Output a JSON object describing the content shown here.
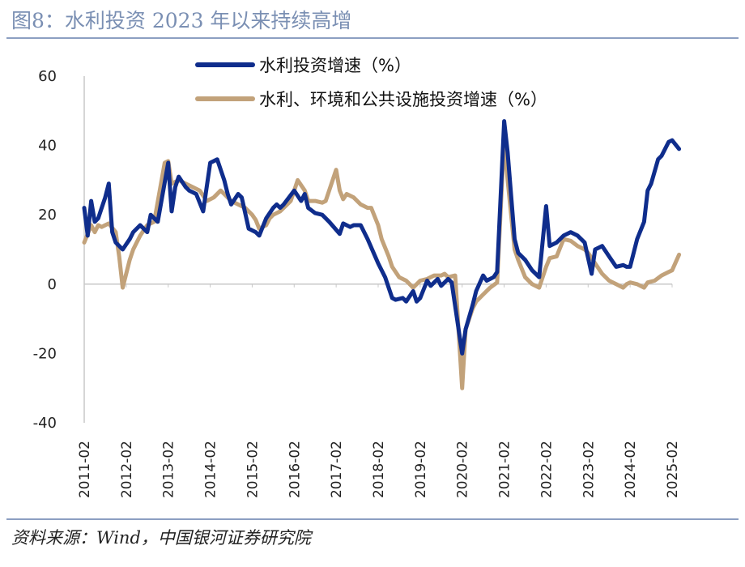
{
  "figure": {
    "title": "图8：水利投资 2023 年以来持续高增",
    "source": "资料来源：Wind，中国银河证券研究院"
  },
  "colors": {
    "series1": "#0f2d8c",
    "series2": "#c2a27a",
    "title": "#7a8fb3",
    "rule": "#8c9fc2",
    "axis": "#c8c8c8"
  },
  "chart_data": {
    "type": "line",
    "title": "",
    "xlabel": "",
    "ylabel": "",
    "ylim": [
      -40,
      60
    ],
    "yticks": [
      60,
      40,
      20,
      0,
      -20,
      -40
    ],
    "xrange": [
      "2011-02",
      "2025-02"
    ],
    "xticks": [
      "2011-02",
      "2012-02",
      "2013-02",
      "2014-02",
      "2015-02",
      "2016-02",
      "2017-02",
      "2018-02",
      "2019-02",
      "2020-02",
      "2021-02",
      "2022-02",
      "2023-02",
      "2024-02",
      "2025-02"
    ],
    "grid": false,
    "legend_position": "top",
    "series": [
      {
        "name": "水利投资增速（%）",
        "color": "#0f2d8c",
        "points": [
          [
            "2011-02",
            22
          ],
          [
            "2011-03",
            14
          ],
          [
            "2011-04",
            24
          ],
          [
            "2011-05",
            18
          ],
          [
            "2011-06",
            19
          ],
          [
            "2011-07",
            22
          ],
          [
            "2011-08",
            25
          ],
          [
            "2011-09",
            29
          ],
          [
            "2011-10",
            15
          ],
          [
            "2011-11",
            12
          ],
          [
            "2012-01",
            10
          ],
          [
            "2012-03",
            13
          ],
          [
            "2012-04",
            15
          ],
          [
            "2012-06",
            17
          ],
          [
            "2012-08",
            15
          ],
          [
            "2012-09",
            20
          ],
          [
            "2012-11",
            18
          ],
          [
            "2013-02",
            35
          ],
          [
            "2013-03",
            21
          ],
          [
            "2013-04",
            28
          ],
          [
            "2013-05",
            31
          ],
          [
            "2013-07",
            28
          ],
          [
            "2013-08",
            27
          ],
          [
            "2013-10",
            26
          ],
          [
            "2013-12",
            21
          ],
          [
            "2014-02",
            35
          ],
          [
            "2014-03",
            35.5
          ],
          [
            "2014-04",
            36
          ],
          [
            "2014-06",
            30
          ],
          [
            "2014-07",
            26
          ],
          [
            "2014-08",
            23
          ],
          [
            "2014-10",
            26
          ],
          [
            "2014-11",
            25
          ],
          [
            "2015-01",
            16
          ],
          [
            "2015-03",
            15
          ],
          [
            "2015-04",
            14
          ],
          [
            "2015-06",
            19
          ],
          [
            "2015-08",
            22
          ],
          [
            "2015-09",
            23
          ],
          [
            "2015-10",
            22
          ],
          [
            "2015-11",
            23
          ],
          [
            "2016-02",
            27
          ],
          [
            "2016-04",
            24
          ],
          [
            "2016-05",
            26
          ],
          [
            "2016-06",
            22
          ],
          [
            "2016-08",
            20.5
          ],
          [
            "2016-10",
            20
          ],
          [
            "2016-12",
            18
          ],
          [
            "2017-03",
            14.5
          ],
          [
            "2017-04",
            17.5
          ],
          [
            "2017-06",
            16.5
          ],
          [
            "2017-07",
            17
          ],
          [
            "2017-09",
            17
          ],
          [
            "2017-11",
            13
          ],
          [
            "2018-02",
            6
          ],
          [
            "2018-04",
            2
          ],
          [
            "2018-06",
            -4
          ],
          [
            "2018-07",
            -4.5
          ],
          [
            "2018-09",
            -4
          ],
          [
            "2018-10",
            -5
          ],
          [
            "2018-12",
            -2
          ],
          [
            "2019-01",
            -5
          ],
          [
            "2019-02",
            -4
          ],
          [
            "2019-04",
            1
          ],
          [
            "2019-05",
            -0.5
          ],
          [
            "2019-07",
            1.5
          ],
          [
            "2019-08",
            -0.5
          ],
          [
            "2019-10",
            1.5
          ],
          [
            "2019-11",
            0.5
          ],
          [
            "2020-02",
            -20
          ],
          [
            "2020-03",
            -13
          ],
          [
            "2020-05",
            -6
          ],
          [
            "2020-06",
            -2
          ],
          [
            "2020-08",
            2.5
          ],
          [
            "2020-09",
            1
          ],
          [
            "2020-11",
            2
          ],
          [
            "2020-12",
            3.5
          ],
          [
            "2021-02",
            47
          ],
          [
            "2021-03",
            38
          ],
          [
            "2021-05",
            13
          ],
          [
            "2021-06",
            9
          ],
          [
            "2021-08",
            7
          ],
          [
            "2021-10",
            4
          ],
          [
            "2021-12",
            2
          ],
          [
            "2022-02",
            22.5
          ],
          [
            "2022-03",
            11
          ],
          [
            "2022-05",
            12
          ],
          [
            "2022-07",
            14
          ],
          [
            "2022-09",
            15
          ],
          [
            "2022-11",
            14
          ],
          [
            "2023-01",
            12
          ],
          [
            "2023-03",
            3
          ],
          [
            "2023-04",
            10
          ],
          [
            "2023-06",
            11
          ],
          [
            "2023-08",
            8
          ],
          [
            "2023-10",
            5
          ],
          [
            "2023-12",
            5.5
          ],
          [
            "2024-01",
            5
          ],
          [
            "2024-02",
            5
          ],
          [
            "2024-04",
            13
          ],
          [
            "2024-06",
            18
          ],
          [
            "2024-07",
            27
          ],
          [
            "2024-08",
            29
          ],
          [
            "2024-10",
            36
          ],
          [
            "2024-11",
            37
          ],
          [
            "2025-01",
            41
          ],
          [
            "2025-02",
            41.5
          ],
          [
            "2025-04",
            39
          ]
        ]
      },
      {
        "name": "水利、环境和公共设施投资增速（%）",
        "color": "#c2a27a",
        "points": [
          [
            "2011-02",
            12
          ],
          [
            "2011-04",
            17
          ],
          [
            "2011-05",
            15
          ],
          [
            "2011-06",
            17
          ],
          [
            "2011-07",
            16.5
          ],
          [
            "2011-08",
            17
          ],
          [
            "2011-09",
            17.5
          ],
          [
            "2011-11",
            15
          ],
          [
            "2011-12",
            8
          ],
          [
            "2012-01",
            -1
          ],
          [
            "2012-03",
            7
          ],
          [
            "2012-04",
            10
          ],
          [
            "2012-05",
            12
          ],
          [
            "2012-06",
            14
          ],
          [
            "2012-08",
            17
          ],
          [
            "2012-10",
            18
          ],
          [
            "2013-01",
            35
          ],
          [
            "2013-02",
            35.5
          ],
          [
            "2013-03",
            29
          ],
          [
            "2013-05",
            30
          ],
          [
            "2013-07",
            29
          ],
          [
            "2013-09",
            28
          ],
          [
            "2013-11",
            27
          ],
          [
            "2014-01",
            24
          ],
          [
            "2014-03",
            25
          ],
          [
            "2014-05",
            27
          ],
          [
            "2014-06",
            26
          ],
          [
            "2014-08",
            24
          ],
          [
            "2014-10",
            23
          ],
          [
            "2014-12",
            22
          ],
          [
            "2015-02",
            20
          ],
          [
            "2015-03",
            18.5
          ],
          [
            "2015-04",
            16
          ],
          [
            "2015-06",
            17
          ],
          [
            "2015-07",
            19
          ],
          [
            "2015-08",
            20
          ],
          [
            "2015-10",
            21
          ],
          [
            "2016-01",
            24
          ],
          [
            "2016-03",
            30
          ],
          [
            "2016-05",
            27
          ],
          [
            "2016-06",
            24
          ],
          [
            "2016-08",
            24
          ],
          [
            "2016-10",
            23.5
          ],
          [
            "2016-11",
            24
          ],
          [
            "2017-02",
            33
          ],
          [
            "2017-03",
            27
          ],
          [
            "2017-04",
            24.5
          ],
          [
            "2017-05",
            26
          ],
          [
            "2017-07",
            25
          ],
          [
            "2017-09",
            23
          ],
          [
            "2017-11",
            22
          ],
          [
            "2017-12",
            22
          ],
          [
            "2018-02",
            17
          ],
          [
            "2018-03",
            13
          ],
          [
            "2018-05",
            8
          ],
          [
            "2018-06",
            5
          ],
          [
            "2018-08",
            2
          ],
          [
            "2018-10",
            1
          ],
          [
            "2018-12",
            -1
          ],
          [
            "2019-02",
            1
          ],
          [
            "2019-04",
            1.5
          ],
          [
            "2019-06",
            2.5
          ],
          [
            "2019-08",
            2.5
          ],
          [
            "2019-09",
            3
          ],
          [
            "2019-10",
            2
          ],
          [
            "2019-12",
            2.5
          ],
          [
            "2020-02",
            -30
          ],
          [
            "2020-03",
            -13
          ],
          [
            "2020-05",
            -7
          ],
          [
            "2020-06",
            -5
          ],
          [
            "2020-08",
            -3
          ],
          [
            "2020-10",
            -1
          ],
          [
            "2020-12",
            0.5
          ],
          [
            "2021-02",
            42
          ],
          [
            "2021-03",
            30
          ],
          [
            "2021-05",
            10
          ],
          [
            "2021-06",
            7
          ],
          [
            "2021-08",
            2
          ],
          [
            "2021-10",
            0
          ],
          [
            "2021-12",
            -1
          ],
          [
            "2022-02",
            5
          ],
          [
            "2022-03",
            7.5
          ],
          [
            "2022-05",
            8
          ],
          [
            "2022-07",
            13
          ],
          [
            "2022-09",
            12.5
          ],
          [
            "2022-11",
            11
          ],
          [
            "2023-01",
            10
          ],
          [
            "2023-02",
            9
          ],
          [
            "2023-04",
            6
          ],
          [
            "2023-06",
            3
          ],
          [
            "2023-08",
            1
          ],
          [
            "2023-10",
            0
          ],
          [
            "2023-12",
            -1
          ],
          [
            "2024-01",
            0
          ],
          [
            "2024-02",
            0.5
          ],
          [
            "2024-04",
            0
          ],
          [
            "2024-06",
            -1
          ],
          [
            "2024-07",
            0.5
          ],
          [
            "2024-09",
            1
          ],
          [
            "2024-11",
            2.5
          ],
          [
            "2025-01",
            3.5
          ],
          [
            "2025-02",
            4
          ],
          [
            "2025-04",
            8.5
          ]
        ]
      }
    ]
  }
}
